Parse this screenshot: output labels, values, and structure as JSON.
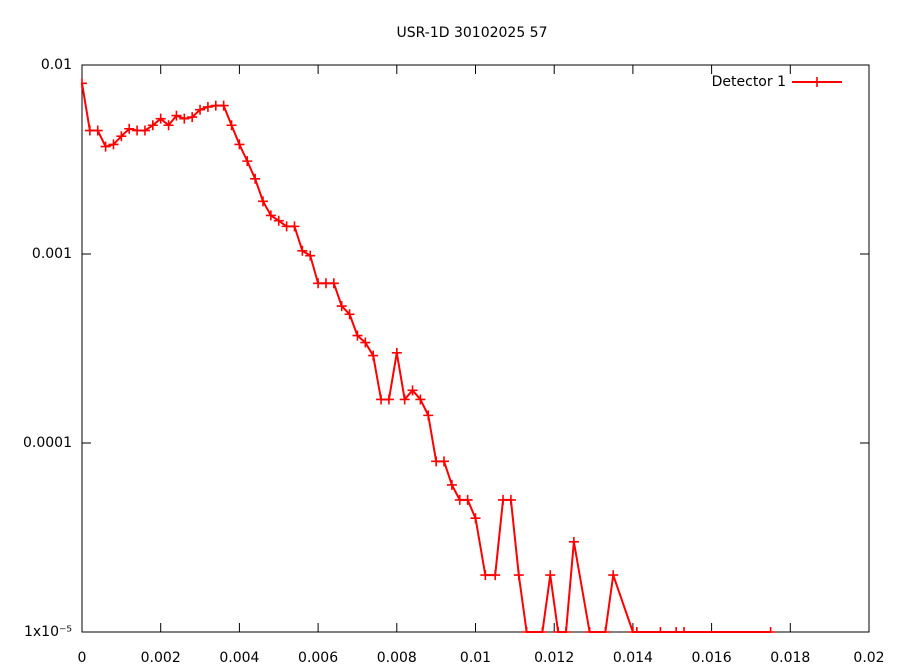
{
  "chart_data": {
    "type": "line",
    "title": "USR-1D 30102025 57",
    "log_y": true,
    "legend": "top-right",
    "x": [
      0,
      0.0002,
      0.0004,
      0.0006,
      0.0008,
      0.001,
      0.0012,
      0.0014,
      0.0016,
      0.0018,
      0.002,
      0.0022,
      0.0024,
      0.0026,
      0.0028,
      0.003,
      0.0032,
      0.0034,
      0.0036,
      0.0038,
      0.004,
      0.0042,
      0.0044,
      0.0046,
      0.0048,
      0.005,
      0.0052,
      0.0054,
      0.0056,
      0.0058,
      0.006,
      0.0062,
      0.0064,
      0.0066,
      0.0068,
      0.007,
      0.0072,
      0.0074,
      0.0076,
      0.0078,
      0.008,
      0.0082,
      0.0084,
      0.0086,
      0.0088,
      0.009,
      0.0092,
      0.0094,
      0.0096,
      0.0098,
      0.01,
      0.01025,
      0.0105,
      0.0107,
      0.0109,
      0.0111,
      0.0113,
      0.0117,
      0.0119,
      0.0121,
      0.0123,
      0.0125,
      0.0129,
      0.0133,
      0.0135,
      0.014,
      0.0141,
      0.0147,
      0.0151,
      0.0153,
      0.0175
    ],
    "series": [
      {
        "name": "Detector 1",
        "color": "#ff0000",
        "values": [
          0.008,
          0.0045,
          0.0045,
          0.0037,
          0.0038,
          0.0042,
          0.0046,
          0.0045,
          0.0045,
          0.0048,
          0.0052,
          0.0048,
          0.0054,
          0.0052,
          0.0053,
          0.0058,
          0.006,
          0.0061,
          0.0061,
          0.0048,
          0.0038,
          0.0031,
          0.0025,
          0.0019,
          0.0016,
          0.0015,
          0.0014,
          0.0014,
          0.00104,
          0.00098,
          0.0007,
          0.0007,
          0.0007,
          0.00053,
          0.00048,
          0.00037,
          0.00034,
          0.00029,
          0.00017,
          0.00017,
          0.0003,
          0.00017,
          0.00019,
          0.00017,
          0.00014,
          8e-05,
          8e-05,
          6e-05,
          5e-05,
          5e-05,
          4e-05,
          2e-05,
          2e-05,
          5e-05,
          5e-05,
          2e-05,
          1e-05,
          1e-05,
          2e-05,
          1e-05,
          1e-05,
          3e-05,
          1e-05,
          1e-05,
          2e-05,
          1e-05,
          1e-05,
          1e-05,
          1e-05,
          1e-05,
          1e-05
        ]
      }
    ],
    "xlim": [
      0,
      0.02
    ],
    "xticks": [
      0,
      0.002,
      0.004,
      0.006,
      0.008,
      0.01,
      0.012,
      0.014,
      0.016,
      0.018,
      0.02
    ],
    "ylim": [
      1e-05,
      0.01
    ],
    "yticks": [
      {
        "value": 1e-05,
        "label": "1x10⁻⁵"
      },
      0.0001,
      0.001,
      0.01
    ]
  }
}
